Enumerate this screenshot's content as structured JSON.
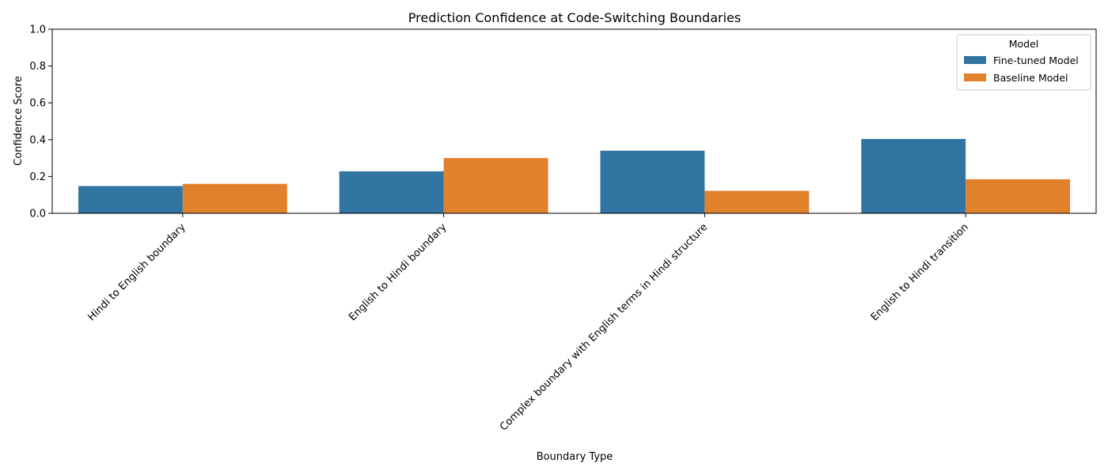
{
  "chart_data": {
    "type": "bar",
    "title": "Prediction Confidence at Code-Switching Boundaries",
    "xlabel": "Boundary Type",
    "ylabel": "Confidence Score",
    "ylim": [
      0,
      1.0
    ],
    "yticks": [
      "0.0",
      "0.2",
      "0.4",
      "0.6",
      "0.8",
      "1.0"
    ],
    "categories": [
      "Hindi to English boundary",
      "English to Hindi boundary",
      "Complex boundary with English terms in Hindi structure",
      "English to Hindi transition"
    ],
    "series": [
      {
        "name": "Fine-tuned Model",
        "color": "#3274a1",
        "values": [
          0.148,
          0.228,
          0.34,
          0.404
        ]
      },
      {
        "name": "Baseline Model",
        "color": "#e1812c",
        "values": [
          0.16,
          0.3,
          0.122,
          0.185
        ]
      }
    ],
    "legend": {
      "title": "Model",
      "position": "top-right"
    },
    "grid": false
  }
}
